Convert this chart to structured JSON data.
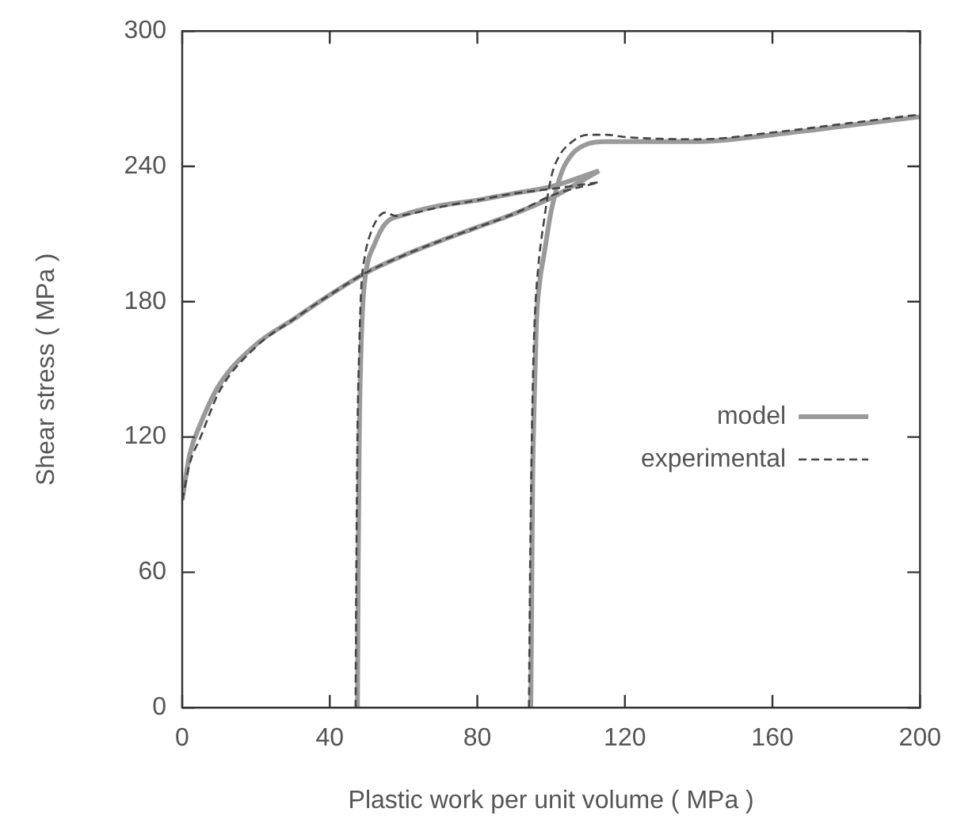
{
  "chart_data": {
    "type": "line",
    "xlabel": "Plastic work per unit volume ( MPa )",
    "ylabel": "Shear stress ( MPa )",
    "xlim": [
      0,
      200
    ],
    "xticks": [
      0,
      40,
      80,
      120,
      160,
      200
    ],
    "ylim": [
      0,
      300
    ],
    "yticks": [
      0,
      60,
      120,
      180,
      240,
      300
    ],
    "grid": false,
    "legend": "right",
    "marker": "none",
    "series": [
      {
        "name": "model",
        "color": "#9a9a9a",
        "line_style": "solid",
        "x": [
          0,
          2,
          5,
          10,
          20,
          30,
          40,
          50,
          60,
          70,
          80,
          90,
          100,
          113
        ],
        "values": [
          92,
          112,
          126,
          143,
          161,
          172,
          183,
          193,
          200.5,
          207,
          213,
          219,
          226,
          238
        ]
      },
      {
        "name": "experimental",
        "color": "#444444",
        "line_style": "dashed",
        "x": [
          0,
          2,
          5,
          10,
          20,
          30,
          40,
          50,
          60,
          70,
          80,
          90,
          100,
          113
        ],
        "values": [
          92,
          108,
          120,
          140,
          160,
          172,
          183,
          193,
          200.5,
          207,
          213,
          219,
          227,
          233
        ]
      },
      {
        "color": "#9a9a9a",
        "line_style": "solid",
        "x": [
          47.5,
          47.7,
          48,
          48.5,
          49,
          50,
          52,
          55,
          60,
          70,
          80,
          90,
          100,
          113
        ],
        "values": [
          0,
          60,
          120,
          160,
          180,
          195,
          205,
          214.5,
          218.5,
          222.6,
          225,
          228,
          231,
          238
        ]
      },
      {
        "color": "#444444",
        "line_style": "dashed",
        "x": [
          47,
          47.2,
          47.5,
          48,
          48.5,
          49.5,
          51,
          53,
          55,
          58,
          62,
          70,
          80,
          90,
          100,
          113
        ],
        "values": [
          0,
          60,
          120,
          160,
          185,
          200,
          210,
          217,
          219.5,
          218,
          219,
          222,
          225,
          228,
          230,
          233
        ]
      },
      {
        "color": "#9a9a9a",
        "line_style": "solid",
        "x": [
          94.5,
          94.8,
          95,
          95.5,
          96,
          97,
          98,
          100,
          103,
          106,
          110,
          115,
          120,
          140,
          160,
          180,
          200
        ],
        "values": [
          0,
          60,
          100,
          140,
          170,
          190,
          200,
          220,
          238,
          246,
          250,
          251,
          251,
          251,
          254,
          258,
          262
        ]
      },
      {
        "color": "#444444",
        "line_style": "dashed",
        "x": [
          94,
          94.3,
          94.6,
          95,
          95.5,
          96.5,
          98,
          100,
          102,
          105,
          110,
          115,
          120,
          140,
          160,
          180,
          200
        ],
        "values": [
          0,
          60,
          100,
          140,
          170,
          195,
          215,
          235,
          244,
          250,
          254,
          254,
          253,
          252,
          255,
          259,
          263
        ]
      }
    ]
  }
}
